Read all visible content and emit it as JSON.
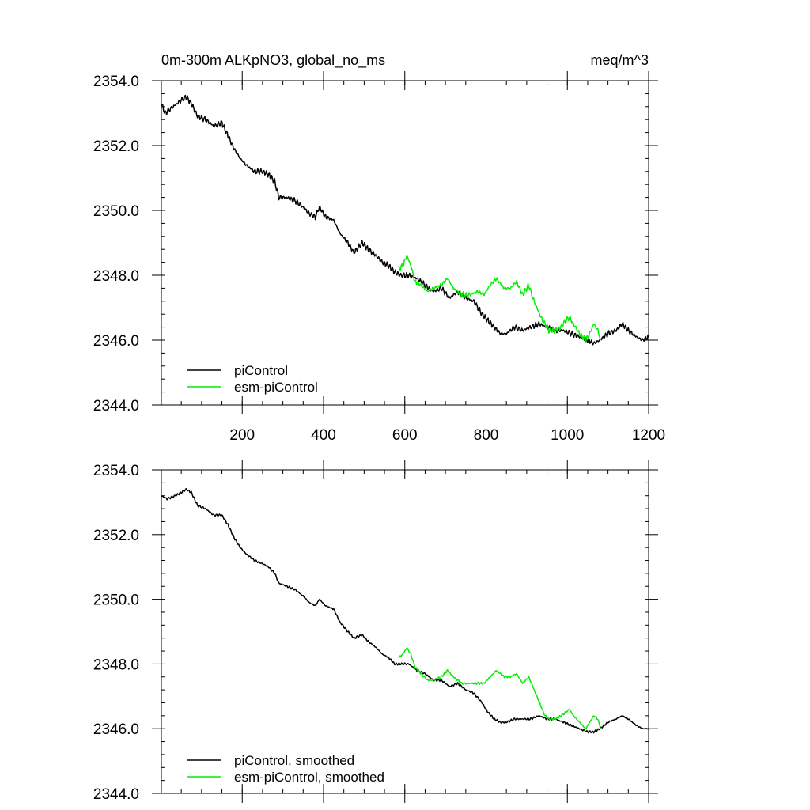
{
  "figure": {
    "title_left": "0m-300m ALKpNO3, global_no_ms",
    "title_right": "meq/m^3"
  },
  "colors": {
    "piControl": "#000000",
    "esm_piControl": "#00ee00",
    "axis": "#000000"
  },
  "chart_data": [
    {
      "type": "line",
      "title": "0m-300m ALKpNO3, global_no_ms",
      "units": "meq/m^3",
      "xlim": [
        1,
        1200
      ],
      "ylim": [
        2344.0,
        2354.0
      ],
      "xticks": [
        200,
        400,
        600,
        800,
        1000,
        1200
      ],
      "xtick_labels": [
        "200",
        "400",
        "600",
        "800",
        "1000",
        "1200"
      ],
      "yticks": [
        2344.0,
        2346.0,
        2348.0,
        2350.0,
        2352.0,
        2354.0
      ],
      "ytick_labels": [
        "2344.0",
        "2346.0",
        "2348.0",
        "2350.0",
        "2352.0",
        "2354.0"
      ],
      "smoothed": false,
      "legend_position": "bottom-left",
      "series": [
        {
          "name": "piControl",
          "color": "#000000",
          "points": [
            [
              1,
              2353.3
            ],
            [
              10,
              2353.0
            ],
            [
              30,
              2353.2
            ],
            [
              50,
              2353.4
            ],
            [
              62,
              2353.5
            ],
            [
              75,
              2353.3
            ],
            [
              90,
              2352.9
            ],
            [
              110,
              2352.8
            ],
            [
              130,
              2352.6
            ],
            [
              150,
              2352.7
            ],
            [
              165,
              2352.3
            ],
            [
              180,
              2351.9
            ],
            [
              195,
              2351.6
            ],
            [
              210,
              2351.4
            ],
            [
              230,
              2351.2
            ],
            [
              250,
              2351.2
            ],
            [
              265,
              2351.1
            ],
            [
              280,
              2350.9
            ],
            [
              290,
              2350.4
            ],
            [
              310,
              2350.4
            ],
            [
              330,
              2350.3
            ],
            [
              350,
              2350.1
            ],
            [
              365,
              2349.9
            ],
            [
              380,
              2349.8
            ],
            [
              390,
              2350.1
            ],
            [
              405,
              2349.8
            ],
            [
              425,
              2349.7
            ],
            [
              440,
              2349.3
            ],
            [
              460,
              2349.0
            ],
            [
              475,
              2348.7
            ],
            [
              495,
              2349.0
            ],
            [
              510,
              2348.8
            ],
            [
              530,
              2348.6
            ],
            [
              545,
              2348.4
            ],
            [
              560,
              2348.3
            ],
            [
              575,
              2348.1
            ],
            [
              590,
              2348.0
            ],
            [
              610,
              2348.0
            ],
            [
              630,
              2347.9
            ],
            [
              650,
              2347.7
            ],
            [
              670,
              2347.5
            ],
            [
              690,
              2347.6
            ],
            [
              710,
              2347.3
            ],
            [
              730,
              2347.5
            ],
            [
              750,
              2347.3
            ],
            [
              770,
              2347.2
            ],
            [
              790,
              2346.8
            ],
            [
              805,
              2346.6
            ],
            [
              820,
              2346.4
            ],
            [
              835,
              2346.2
            ],
            [
              850,
              2346.2
            ],
            [
              870,
              2346.4
            ],
            [
              890,
              2346.3
            ],
            [
              910,
              2346.4
            ],
            [
              930,
              2346.5
            ],
            [
              950,
              2346.4
            ],
            [
              970,
              2346.3
            ],
            [
              990,
              2346.3
            ],
            [
              1010,
              2346.2
            ],
            [
              1030,
              2346.1
            ],
            [
              1050,
              2346.0
            ],
            [
              1065,
              2345.9
            ],
            [
              1080,
              2346.0
            ],
            [
              1100,
              2346.2
            ],
            [
              1120,
              2346.3
            ],
            [
              1135,
              2346.5
            ],
            [
              1150,
              2346.3
            ],
            [
              1170,
              2346.1
            ],
            [
              1185,
              2346.0
            ],
            [
              1200,
              2346.1
            ]
          ]
        },
        {
          "name": "esm-piControl",
          "color": "#00ee00",
          "points": [
            [
              585,
              2348.2
            ],
            [
              595,
              2348.3
            ],
            [
              605,
              2348.6
            ],
            [
              615,
              2348.3
            ],
            [
              625,
              2347.8
            ],
            [
              640,
              2347.7
            ],
            [
              655,
              2347.5
            ],
            [
              670,
              2347.6
            ],
            [
              690,
              2347.7
            ],
            [
              705,
              2347.9
            ],
            [
              720,
              2347.6
            ],
            [
              740,
              2347.4
            ],
            [
              760,
              2347.4
            ],
            [
              780,
              2347.5
            ],
            [
              795,
              2347.4
            ],
            [
              810,
              2347.7
            ],
            [
              825,
              2347.9
            ],
            [
              845,
              2347.6
            ],
            [
              860,
              2347.6
            ],
            [
              875,
              2347.8
            ],
            [
              890,
              2347.4
            ],
            [
              905,
              2347.7
            ],
            [
              915,
              2347.3
            ],
            [
              925,
              2347.0
            ],
            [
              935,
              2346.7
            ],
            [
              945,
              2346.5
            ],
            [
              955,
              2346.3
            ],
            [
              970,
              2346.3
            ],
            [
              985,
              2346.4
            ],
            [
              995,
              2346.6
            ],
            [
              1005,
              2346.7
            ],
            [
              1015,
              2346.5
            ],
            [
              1030,
              2346.2
            ],
            [
              1045,
              2346.0
            ],
            [
              1055,
              2346.2
            ],
            [
              1065,
              2346.5
            ],
            [
              1075,
              2346.3
            ],
            [
              1082,
              2346.0
            ]
          ]
        }
      ]
    },
    {
      "type": "line",
      "title": "",
      "units": "",
      "xlim": [
        1,
        1200
      ],
      "ylim": [
        2344.0,
        2354.0
      ],
      "xticks": [
        200,
        400,
        600,
        800,
        1000,
        1200
      ],
      "xtick_labels": [],
      "yticks": [
        2344.0,
        2346.0,
        2348.0,
        2350.0,
        2352.0,
        2354.0
      ],
      "ytick_labels": [
        "2344.0",
        "2346.0",
        "2348.0",
        "2350.0",
        "2352.0",
        "2354.0"
      ],
      "smoothed": true,
      "legend_position": "bottom-left",
      "series": [
        {
          "name": "piControl, smoothed",
          "color": "#000000",
          "points": [
            [
              1,
              2353.2
            ],
            [
              15,
              2353.1
            ],
            [
              35,
              2353.2
            ],
            [
              50,
              2353.3
            ],
            [
              62,
              2353.4
            ],
            [
              75,
              2353.3
            ],
            [
              90,
              2352.9
            ],
            [
              110,
              2352.8
            ],
            [
              130,
              2352.6
            ],
            [
              150,
              2352.6
            ],
            [
              165,
              2352.3
            ],
            [
              180,
              2351.9
            ],
            [
              195,
              2351.6
            ],
            [
              210,
              2351.4
            ],
            [
              230,
              2351.2
            ],
            [
              250,
              2351.1
            ],
            [
              265,
              2351.0
            ],
            [
              280,
              2350.8
            ],
            [
              290,
              2350.5
            ],
            [
              310,
              2350.4
            ],
            [
              330,
              2350.3
            ],
            [
              350,
              2350.1
            ],
            [
              365,
              2349.9
            ],
            [
              380,
              2349.8
            ],
            [
              390,
              2350.0
            ],
            [
              405,
              2349.8
            ],
            [
              425,
              2349.7
            ],
            [
              440,
              2349.3
            ],
            [
              460,
              2349.0
            ],
            [
              475,
              2348.8
            ],
            [
              495,
              2348.9
            ],
            [
              510,
              2348.7
            ],
            [
              530,
              2348.5
            ],
            [
              545,
              2348.3
            ],
            [
              560,
              2348.2
            ],
            [
              575,
              2348.0
            ],
            [
              590,
              2348.0
            ],
            [
              610,
              2348.0
            ],
            [
              630,
              2347.8
            ],
            [
              650,
              2347.7
            ],
            [
              670,
              2347.5
            ],
            [
              690,
              2347.5
            ],
            [
              710,
              2347.3
            ],
            [
              730,
              2347.4
            ],
            [
              750,
              2347.2
            ],
            [
              770,
              2347.1
            ],
            [
              790,
              2346.8
            ],
            [
              805,
              2346.5
            ],
            [
              820,
              2346.3
            ],
            [
              835,
              2346.2
            ],
            [
              850,
              2346.2
            ],
            [
              870,
              2346.3
            ],
            [
              890,
              2346.3
            ],
            [
              910,
              2346.3
            ],
            [
              930,
              2346.4
            ],
            [
              950,
              2346.3
            ],
            [
              970,
              2346.3
            ],
            [
              990,
              2346.2
            ],
            [
              1010,
              2346.1
            ],
            [
              1030,
              2346.0
            ],
            [
              1050,
              2345.9
            ],
            [
              1065,
              2345.9
            ],
            [
              1080,
              2346.0
            ],
            [
              1100,
              2346.2
            ],
            [
              1120,
              2346.3
            ],
            [
              1135,
              2346.4
            ],
            [
              1150,
              2346.3
            ],
            [
              1170,
              2346.1
            ],
            [
              1185,
              2346.0
            ],
            [
              1200,
              2346.0
            ]
          ]
        },
        {
          "name": "esm-piControl, smoothed",
          "color": "#00ee00",
          "points": [
            [
              585,
              2348.2
            ],
            [
              595,
              2348.3
            ],
            [
              605,
              2348.5
            ],
            [
              615,
              2348.3
            ],
            [
              625,
              2347.9
            ],
            [
              640,
              2347.7
            ],
            [
              655,
              2347.5
            ],
            [
              670,
              2347.5
            ],
            [
              690,
              2347.6
            ],
            [
              705,
              2347.8
            ],
            [
              720,
              2347.6
            ],
            [
              740,
              2347.4
            ],
            [
              760,
              2347.4
            ],
            [
              780,
              2347.4
            ],
            [
              795,
              2347.4
            ],
            [
              810,
              2347.6
            ],
            [
              825,
              2347.8
            ],
            [
              845,
              2347.6
            ],
            [
              860,
              2347.6
            ],
            [
              875,
              2347.7
            ],
            [
              890,
              2347.4
            ],
            [
              905,
              2347.6
            ],
            [
              915,
              2347.3
            ],
            [
              925,
              2347.0
            ],
            [
              935,
              2346.7
            ],
            [
              945,
              2346.4
            ],
            [
              955,
              2346.3
            ],
            [
              970,
              2346.3
            ],
            [
              985,
              2346.4
            ],
            [
              995,
              2346.5
            ],
            [
              1005,
              2346.6
            ],
            [
              1015,
              2346.4
            ],
            [
              1030,
              2346.2
            ],
            [
              1045,
              2346.0
            ],
            [
              1055,
              2346.2
            ],
            [
              1065,
              2346.4
            ],
            [
              1075,
              2346.3
            ],
            [
              1082,
              2346.0
            ]
          ]
        }
      ]
    }
  ]
}
